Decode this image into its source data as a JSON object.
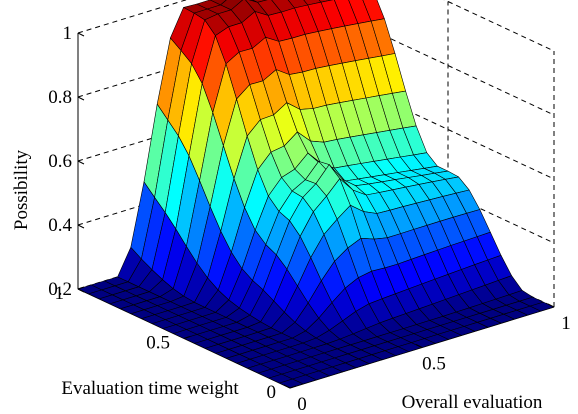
{
  "chart_data": {
    "type": "surface",
    "title": "",
    "xlabel": "Overall evaluation",
    "ylabel": "Evaluation time weight",
    "zlabel": "Possibility",
    "xlim": [
      0,
      1
    ],
    "ylim": [
      0,
      1
    ],
    "zlim": [
      0.2,
      1
    ],
    "x_ticks": [
      "0",
      "0.5",
      "1"
    ],
    "y_ticks": [
      "0",
      "0.5",
      "1"
    ],
    "z_ticks": [
      "0.2",
      "0.4",
      "0.6",
      "0.8",
      "1"
    ],
    "colormap": "jet",
    "grid": true,
    "x": [
      0,
      0.05,
      0.1,
      0.15,
      0.2,
      0.25,
      0.3,
      0.35,
      0.4,
      0.45,
      0.5,
      0.55,
      0.6,
      0.65,
      0.7,
      0.75,
      0.8,
      0.85,
      0.9,
      0.95,
      1
    ],
    "y": [
      0,
      0.05,
      0.1,
      0.15,
      0.2,
      0.25,
      0.3,
      0.35,
      0.4,
      0.45,
      0.5,
      0.55,
      0.6,
      0.65,
      0.7,
      0.75,
      0.8,
      0.85,
      0.9,
      0.95,
      1
    ],
    "z_description_points": [
      {
        "x": 0,
        "y": 1,
        "z": 0.2
      },
      {
        "x": 0,
        "y": 0,
        "z": 0.2
      },
      {
        "x": 1,
        "y": 0,
        "z": 0.2
      },
      {
        "x": 0.25,
        "y": 1,
        "z": 0.2
      },
      {
        "x": 0.35,
        "y": 1,
        "z": 0.4
      },
      {
        "x": 0.45,
        "y": 1,
        "z": 0.6
      },
      {
        "x": 0.6,
        "y": 1,
        "z": 0.85
      },
      {
        "x": 0.8,
        "y": 1,
        "z": 0.97
      },
      {
        "x": 1,
        "y": 1,
        "z": 0.95
      },
      {
        "x": 0.6,
        "y": 0.5,
        "z": 0.6
      },
      {
        "x": 1,
        "y": 0.5,
        "z": 0.47
      },
      {
        "x": 0.8,
        "y": 0.2,
        "z": 0.2
      }
    ]
  }
}
